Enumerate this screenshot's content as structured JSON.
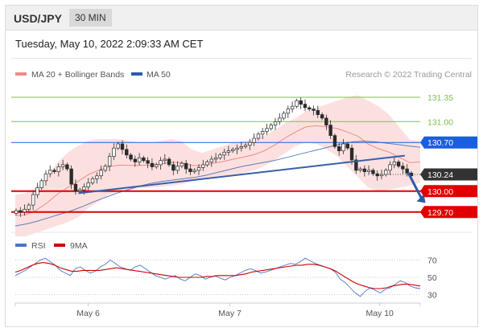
{
  "header": {
    "pair": "USD/JPY",
    "timeframe": "30 MIN"
  },
  "timestamp": "Tuesday, May 10, 2022 2:09:33 AM CET",
  "credit": "Research © 2022 Trading Central",
  "colors": {
    "bollinger_band": "#f6a5a5",
    "ma50": "#2a5caa",
    "candle": "#2b2b2b",
    "resistance": "#7dc24b",
    "pivot": "#1a5fe0",
    "support": "#e00000",
    "current_price": "#333333",
    "arrow": "#2a5caa",
    "rsi": "#4a76c9",
    "rsi_ma": "#cc0000"
  },
  "chart_data": [
    {
      "type": "candlestick",
      "title": "USD/JPY",
      "legend": [
        {
          "name": "MA 20 + Bollinger Bands",
          "color": "#f08a85"
        },
        {
          "name": "MA 50",
          "color": "#2a5caa"
        }
      ],
      "x_tick_labels": [
        "May 6",
        "May 7",
        "May 10"
      ],
      "x_range": [
        0,
        100
      ],
      "x_ticks": [
        18,
        53,
        90
      ],
      "y_range": [
        129.42,
        131.5
      ],
      "levels": [
        {
          "value": 131.35,
          "label": "131.35",
          "kind": "resistance"
        },
        {
          "value": 131.0,
          "label": "131.00",
          "kind": "resistance"
        },
        {
          "value": 130.7,
          "label": "130.70",
          "kind": "pivot"
        },
        {
          "value": 130.24,
          "label": "130.24",
          "kind": "current"
        },
        {
          "value": 130.0,
          "label": "130.00",
          "kind": "support"
        },
        {
          "value": 129.7,
          "label": "129.70",
          "kind": "support"
        }
      ],
      "trendline": [
        {
          "x": 15.6,
          "y": 129.97
        },
        {
          "x": 96.2,
          "y": 130.51
        }
      ],
      "forecast_arrow": [
        {
          "x": 97.0,
          "y": 130.27
        },
        {
          "x": 101.3,
          "y": 129.83
        }
      ],
      "candle_x_range": [
        0.2,
        97.8
      ],
      "candle_closes": [
        129.72,
        129.7,
        129.74,
        129.8,
        129.95,
        130.05,
        130.15,
        130.25,
        130.3,
        130.28,
        130.35,
        130.38,
        130.32,
        130.1,
        130.0,
        130.02,
        130.06,
        130.12,
        130.18,
        130.22,
        130.3,
        130.36,
        130.5,
        130.62,
        130.68,
        130.6,
        130.52,
        130.46,
        130.42,
        130.48,
        130.44,
        130.4,
        130.35,
        130.38,
        130.44,
        130.46,
        130.38,
        130.3,
        130.36,
        130.4,
        130.32,
        130.28,
        130.3,
        130.34,
        130.38,
        130.42,
        130.46,
        130.48,
        130.52,
        130.56,
        130.58,
        130.6,
        130.62,
        130.64,
        130.66,
        130.7,
        130.76,
        130.82,
        130.86,
        130.9,
        130.95,
        131.0,
        131.05,
        131.12,
        131.18,
        131.22,
        131.3,
        131.25,
        131.2,
        131.18,
        131.16,
        131.1,
        131.05,
        130.95,
        130.8,
        130.64,
        130.58,
        130.68,
        130.62,
        130.45,
        130.3,
        130.32,
        130.28,
        130.3,
        130.25,
        130.22,
        130.24,
        130.3,
        130.38,
        130.42,
        130.36,
        130.32,
        130.26,
        130.22
      ],
      "ma50": [
        129.5,
        129.53,
        129.57,
        129.62,
        129.67,
        129.72,
        129.78,
        129.85,
        129.91,
        129.97,
        130.02,
        130.07,
        130.11,
        130.14,
        130.16,
        130.18,
        130.2,
        130.23,
        130.27,
        130.31,
        130.35,
        130.38,
        130.41,
        130.44,
        130.48,
        130.52,
        130.56,
        130.6,
        130.64,
        130.68,
        130.71,
        130.72,
        130.71,
        130.69,
        130.67,
        130.65,
        130.63
      ],
      "bb_upper": [
        129.95,
        129.97,
        130.05,
        130.2,
        130.4,
        130.55,
        130.65,
        130.72,
        130.75,
        130.75,
        130.75,
        130.72,
        130.7,
        130.7,
        130.72,
        130.75,
        130.72,
        130.6,
        130.55,
        130.6,
        130.65,
        130.7,
        130.72,
        130.75,
        130.8,
        130.88,
        130.98,
        131.05,
        131.15,
        131.2,
        131.25,
        131.3,
        131.35,
        131.38,
        131.3,
        131.22,
        131.1,
        130.92,
        130.74,
        130.72
      ],
      "bb_lower": [
        129.35,
        129.35,
        129.4,
        129.45,
        129.5,
        129.55,
        129.62,
        129.75,
        129.85,
        129.95,
        130.0,
        130.02,
        130.04,
        130.05,
        130.06,
        130.08,
        130.1,
        130.14,
        130.18,
        130.2,
        130.2,
        130.22,
        130.26,
        130.3,
        130.36,
        130.45,
        130.55,
        130.65,
        130.7,
        130.68,
        130.6,
        130.5,
        130.35,
        130.2,
        130.05,
        130.0,
        130.02,
        130.05,
        130.08,
        130.12
      ]
    },
    {
      "type": "line",
      "title": "RSI",
      "legend": [
        {
          "name": "RSI",
          "color": "#4a76c9"
        },
        {
          "name": "9MA",
          "color": "#cc0000"
        }
      ],
      "y_range": [
        25,
        75
      ],
      "y_tick_labels": [
        {
          "value": 70,
          "label": "70"
        },
        {
          "value": 50,
          "label": "50"
        },
        {
          "value": 30,
          "label": "30"
        }
      ],
      "rsi_x_range": [
        0,
        100
      ],
      "rsi_values": [
        52,
        55,
        58,
        62,
        66,
        70,
        72,
        68,
        64,
        58,
        55,
        52,
        60,
        62,
        58,
        55,
        57,
        62,
        65,
        70,
        66,
        62,
        60,
        58,
        62,
        64,
        60,
        56,
        52,
        50,
        48,
        50,
        52,
        48,
        46,
        50,
        54,
        52,
        48,
        50,
        52,
        49,
        47,
        50,
        52,
        55,
        58,
        60,
        58,
        55,
        56,
        58,
        60,
        62,
        64,
        66,
        65,
        68,
        72,
        69,
        66,
        64,
        62,
        60,
        56,
        48,
        44,
        38,
        32,
        28,
        34,
        38,
        35,
        32,
        36,
        38,
        42,
        46,
        44,
        40,
        38,
        37
      ],
      "rsi_ma_values": [
        56,
        58,
        61,
        64,
        66,
        67,
        66,
        64,
        61,
        59,
        57,
        57,
        58,
        58,
        58,
        58,
        59,
        60,
        61,
        60,
        59,
        58,
        57,
        56,
        55,
        54,
        53,
        52,
        51,
        50,
        50,
        50,
        50,
        50,
        51,
        51,
        52,
        52,
        52,
        52,
        53,
        54,
        56,
        57,
        58,
        59,
        60,
        61,
        62,
        63,
        64,
        64,
        65,
        65,
        64,
        62,
        60,
        57,
        53,
        49,
        45,
        42,
        40,
        38,
        37,
        37,
        38,
        40,
        41,
        42,
        42,
        41,
        40
      ]
    }
  ]
}
